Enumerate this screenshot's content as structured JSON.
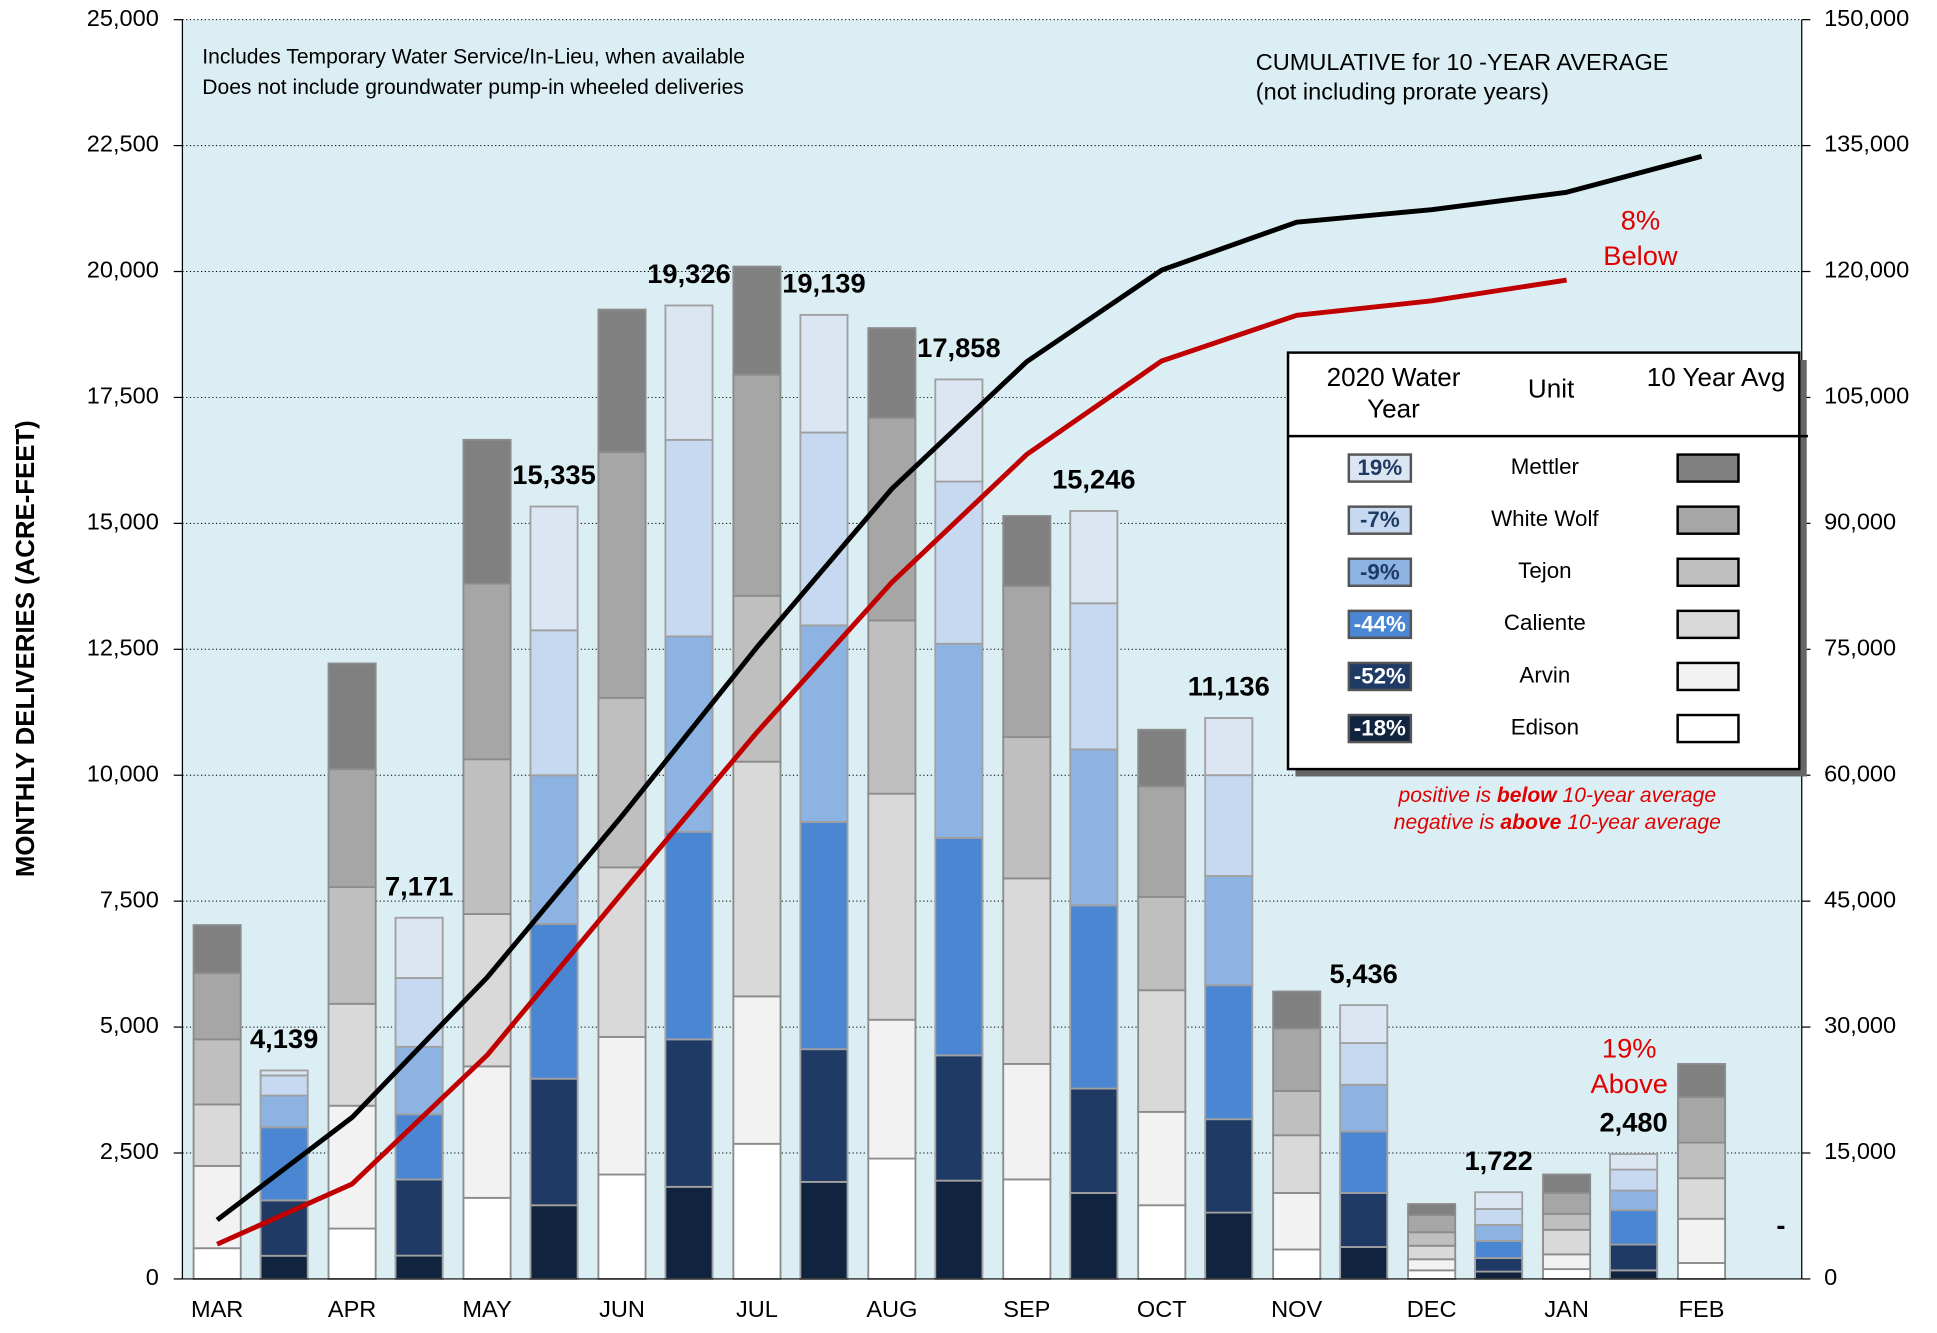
{
  "chart_data": {
    "type": "stacked-bar-line",
    "y_label": "MONTHLY DELIVERIES  (ACRE-FEET)",
    "categories": [
      "MAR",
      "APR",
      "MAY",
      "JUN",
      "JUL",
      "AUG",
      "SEP",
      "OCT",
      "NOV",
      "DEC",
      "JAN",
      "FEB"
    ],
    "ylim": [
      0,
      25000
    ],
    "yticks": [
      0,
      {
        "value": 2500,
        "label": "2,500"
      },
      {
        "value": 5000,
        "label": "5,000"
      },
      {
        "value": 7500,
        "label": "7,500"
      },
      {
        "value": 10000,
        "label": "10,000"
      },
      {
        "value": 12500,
        "label": "12,500"
      },
      {
        "value": 15000,
        "label": "15,000"
      },
      {
        "value": 17500,
        "label": "17,500"
      },
      {
        "value": 20000,
        "label": "20,000"
      },
      {
        "value": 22500,
        "label": "22,500"
      },
      {
        "value": 25000,
        "label": "25,000"
      }
    ],
    "y2lim": [
      0,
      150000
    ],
    "y2ticks": [
      0,
      {
        "value": 15000,
        "label": "15,000"
      },
      {
        "value": 30000,
        "label": "30,000"
      },
      {
        "value": 45000,
        "label": "45,000"
      },
      {
        "value": 60000,
        "label": "60,000"
      },
      {
        "value": 75000,
        "label": "75,000"
      },
      {
        "value": 90000,
        "label": "90,000"
      },
      {
        "value": 105000,
        "label": "105,000"
      },
      {
        "value": 120000,
        "label": "120,000"
      },
      {
        "value": 135000,
        "label": "135,000"
      },
      {
        "value": 150000,
        "label": "150,000"
      }
    ],
    "grid": true,
    "legend_headers": {
      "current": "2020 Water Year",
      "unit": "Unit",
      "average": "10 Year Avg"
    },
    "units": [
      {
        "name": "Edison",
        "change": "-18%",
        "average": {
          "color": "#ffffff",
          "values": [
            610,
            1000,
            1610,
            2073,
            2683,
            2390,
            1976,
            1463,
            585,
            171,
            195,
            317
          ]
        },
        "current": {
          "color": "#10233f",
          "values": [
            460,
            463,
            1463,
            1829,
            1927,
            1951,
            1707,
            1317,
            634,
            146,
            171,
            null
          ]
        }
      },
      {
        "name": "Arvin",
        "change": "-52%",
        "average": {
          "color": "#f2f2f2",
          "values": [
            1634,
            2439,
            2610,
            2732,
            2927,
            2756,
            2293,
            1854,
            1122,
            220,
            293,
            878
          ]
        },
        "current": {
          "color": "#1f3a64",
          "values": [
            1100,
            1512,
            2512,
            2927,
            2634,
            2488,
            2073,
            1854,
            1073,
            268,
            512,
            null
          ]
        }
      },
      {
        "name": "Caliente",
        "change": "-44%",
        "average": {
          "color": "#d9d9d9",
          "values": [
            1220,
            2024,
            3024,
            3366,
            4659,
            4488,
            3683,
            2415,
            1146,
            268,
            488,
            805
          ]
        },
        "current": {
          "color": "#4a86d2",
          "values": [
            1450,
            1293,
            3073,
            4122,
            4512,
            4317,
            3634,
            2659,
            1220,
            341,
            683,
            null
          ]
        }
      },
      {
        "name": "Tejon",
        "change": "-9%",
        "average": {
          "color": "#bfbfbf",
          "values": [
            1293,
            2317,
            3073,
            3366,
            3293,
            3439,
            2805,
            1854,
            878,
            268,
            317,
            707
          ]
        },
        "current": {
          "color": "#8db3e2",
          "values": [
            630,
            1341,
            2951,
            3878,
            3902,
            3854,
            3098,
            2171,
            927,
            317,
            390,
            null
          ]
        }
      },
      {
        "name": "White Wolf",
        "change": "-7%",
        "average": {
          "color": "#a6a6a6",
          "values": [
            1317,
            2341,
            3488,
            4878,
            4390,
            4024,
            3000,
            2195,
            1244,
            341,
            415,
            902
          ]
        },
        "current": {
          "color": "#c6d9f1",
          "values": [
            400,
            1366,
            2878,
            3902,
            3829,
            3220,
            2902,
            2000,
            829,
            317,
            415,
            null
          ]
        }
      },
      {
        "name": "Mettler",
        "change": "19%",
        "average": {
          "color": "#808080",
          "values": [
            951,
            2098,
            2854,
            2829,
            2146,
            1780,
            1390,
            1122,
            732,
            220,
            366,
            659
          ]
        },
        "current": {
          "color": "#dce6f2",
          "values": [
            99,
            1196,
            2458,
            2668,
            2335,
            2028,
            1832,
            1135,
            753,
            333,
            309,
            null
          ]
        }
      }
    ],
    "totals": {
      "values": [
        4139,
        7171,
        15335,
        19326,
        19139,
        17858,
        15246,
        11136,
        5436,
        1722,
        2480,
        null
      ],
      "value_labels": [
        "4,139",
        "7,171",
        "15,335",
        "19,326",
        "19,139",
        "17,858",
        "15,246",
        "11,136",
        "5,436",
        "1,722",
        "2,480",
        "-"
      ]
    },
    "lines": [
      {
        "axis": "y2",
        "color": "#000000",
        "values": [
          7025,
          19244,
          35903,
          55147,
          75245,
          94122,
          109269,
          120172,
          125879,
          127367,
          129441,
          133709
        ]
      },
      {
        "axis": "y2",
        "color": "#c00000",
        "values": [
          4139,
          11310,
          26645,
          45971,
          65110,
          82968,
          98214,
          109350,
          114786,
          116508,
          118988,
          null
        ]
      }
    ],
    "notes": [
      "Includes Temporary Water Service/In-Lieu, when available",
      "Does not include groundwater pump-in wheeled deliveries"
    ],
    "cumulative_note": [
      "CUMULATIVE for 10 -YEAR AVERAGE",
      "(not including prorate years)"
    ],
    "below_note": [
      "8%",
      "Below"
    ],
    "above_note": [
      "19%",
      "Above"
    ],
    "sign_notes": [
      [
        "positive is ",
        "below",
        " 10-year average"
      ],
      [
        "negative is ",
        "above",
        " 10-year average"
      ]
    ]
  }
}
